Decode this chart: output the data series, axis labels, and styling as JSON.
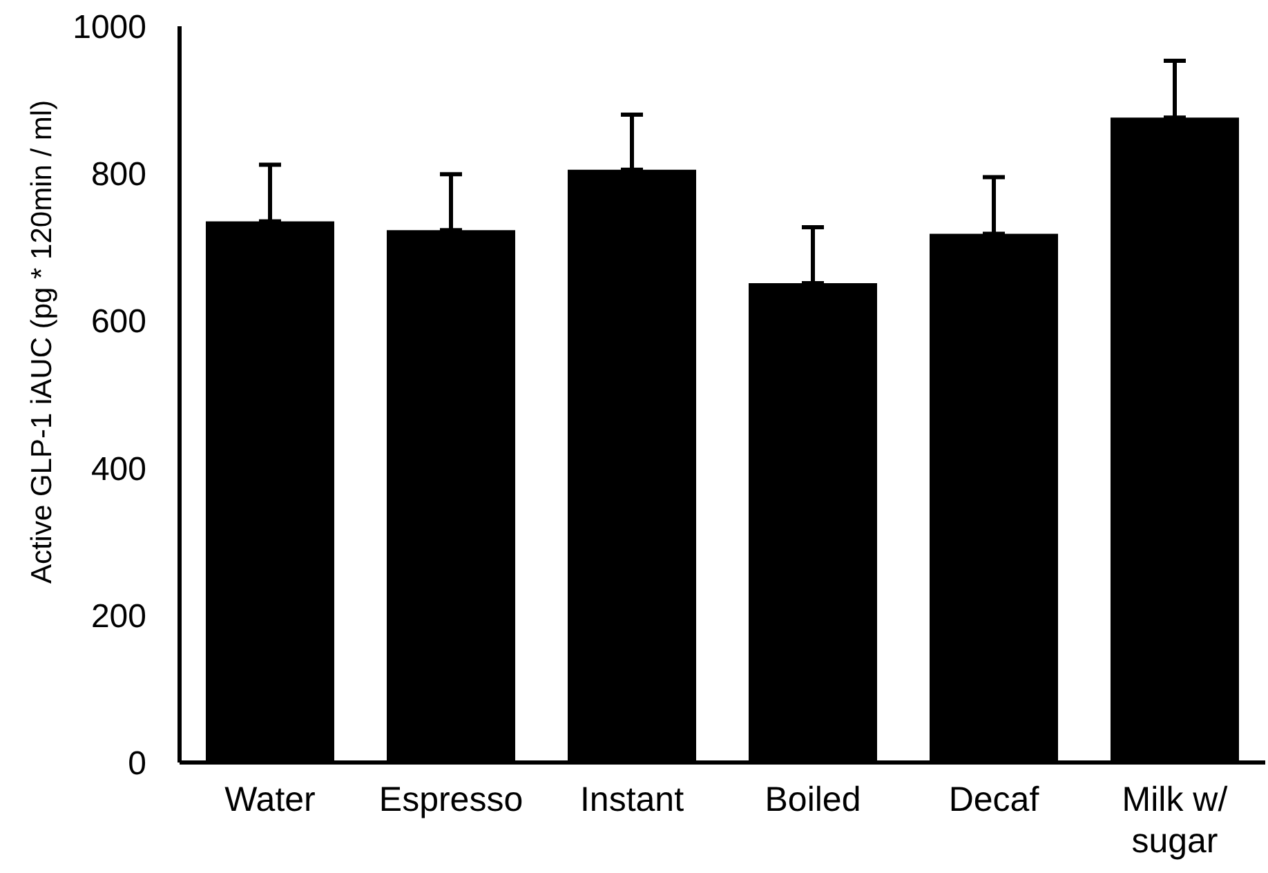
{
  "chart_data": {
    "type": "bar",
    "ylabel": "Active GLP-1 iAUC (pg * 120min / ml)",
    "categories": [
      "Water",
      "Espresso",
      "Instant",
      "Boiled",
      "Decaf",
      "Milk w/ sugar"
    ],
    "values": [
      735,
      723,
      805,
      651,
      718,
      876
    ],
    "errors": [
      [
        735,
        812
      ],
      [
        723,
        799
      ],
      [
        805,
        880
      ],
      [
        651,
        727
      ],
      [
        718,
        795
      ],
      [
        876,
        953
      ]
    ],
    "color": "#000000",
    "ylim": [
      0,
      1000
    ],
    "yticks": [
      0,
      200,
      400,
      600,
      800,
      1000
    ]
  }
}
